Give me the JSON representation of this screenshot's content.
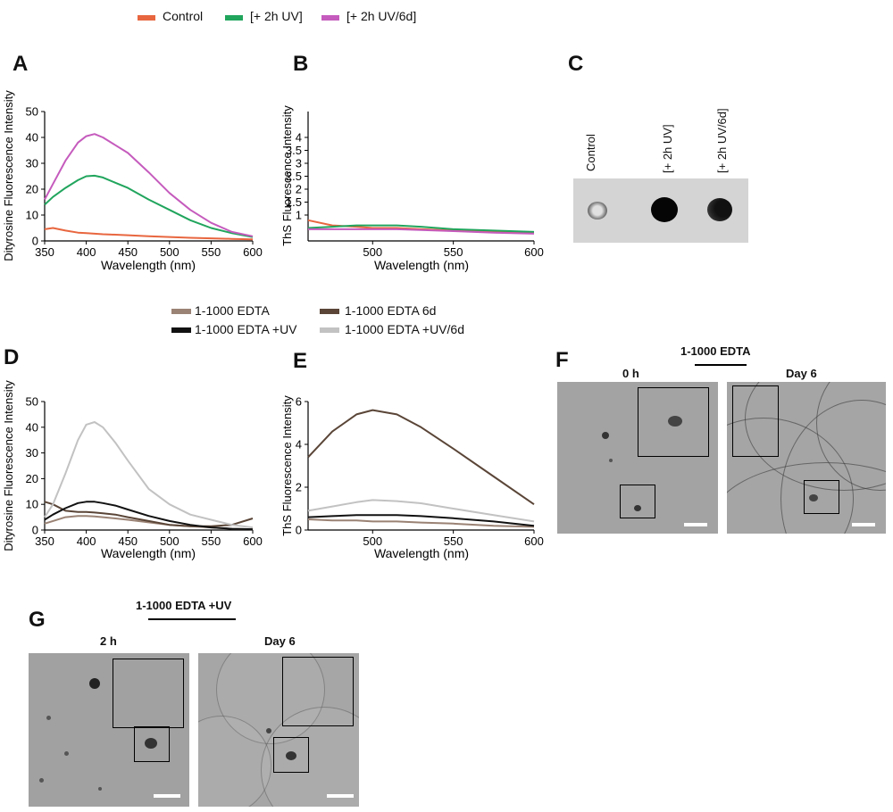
{
  "colors": {
    "control": "#e8663f",
    "uv2h": "#21a55d",
    "uv6d": "#c55bbd",
    "edta": "#9a8274",
    "edta6d": "#5a4537",
    "edta_uv": "#111111",
    "edta_uv6d": "#c2c2c2"
  },
  "legend_top": [
    {
      "label": "Control",
      "color": "#e8663f"
    },
    {
      "label": "[+ 2h UV]",
      "color": "#21a55d"
    },
    {
      "label": "[+ 2h UV/6d]",
      "color": "#c55bbd"
    }
  ],
  "legend_mid": [
    {
      "label": "1-1000 EDTA",
      "color": "#9a8274"
    },
    {
      "label": "1-1000 EDTA 6d",
      "color": "#5a4537"
    },
    {
      "label": "1-1000 EDTA +UV",
      "color": "#111111"
    },
    {
      "label": "1-1000 EDTA +UV/6d",
      "color": "#c2c2c2"
    }
  ],
  "panels": {
    "A": "A",
    "B": "B",
    "C": "C",
    "D": "D",
    "E": "E",
    "F": "F",
    "G": "G"
  },
  "blot": {
    "labels": [
      "Control",
      "[+ 2h UV]",
      "[+ 2h UV/6d]"
    ]
  },
  "em": {
    "F": {
      "group": "1-1000 EDTA",
      "left": "0 h",
      "right": "Day 6"
    },
    "G": {
      "group": "1-1000 EDTA +UV",
      "left": "2 h",
      "right": "Day 6"
    }
  },
  "chart_data": [
    {
      "id": "A",
      "type": "line",
      "xlabel": "Wavelength (nm)",
      "ylabel": "Dityrosine Fluorescence Intensity",
      "xlim": [
        350,
        600
      ],
      "ylim": [
        0,
        50
      ],
      "xticks": [
        350,
        400,
        450,
        500,
        550,
        600
      ],
      "yticks": [
        0,
        10,
        20,
        30,
        40,
        50
      ],
      "x": [
        350,
        360,
        375,
        390,
        400,
        410,
        420,
        435,
        450,
        475,
        500,
        525,
        550,
        575,
        600
      ],
      "series": [
        {
          "name": "Control",
          "color": "#e8663f",
          "values": [
            4.5,
            5,
            4,
            3.2,
            3,
            2.8,
            2.6,
            2.4,
            2.2,
            1.8,
            1.5,
            1.2,
            1,
            0.8,
            0.6
          ]
        },
        {
          "name": "[+ 2h UV]",
          "color": "#21a55d",
          "values": [
            14,
            17,
            20.5,
            23.5,
            25,
            25.2,
            24.5,
            22.5,
            20.5,
            16,
            12,
            8,
            5,
            3,
            1.5
          ]
        },
        {
          "name": "[+ 2h UV/6d]",
          "color": "#c55bbd",
          "values": [
            16,
            22,
            31,
            38,
            40.5,
            41.3,
            40,
            37,
            34,
            26.5,
            18.5,
            12,
            7,
            3.5,
            1.8
          ]
        }
      ]
    },
    {
      "id": "B",
      "type": "line",
      "xlabel": "Wavelength (nm)",
      "ylabel": "ThS Fluorescence Intensity",
      "xlim": [
        460,
        600
      ],
      "ylim": [
        0,
        5
      ],
      "xticks": [
        500,
        550,
        600
      ],
      "yticks": [
        1,
        1.5,
        2,
        2.5,
        3,
        3.5,
        4
      ],
      "x": [
        460,
        475,
        490,
        500,
        515,
        530,
        550,
        575,
        600
      ],
      "series": [
        {
          "name": "Control",
          "color": "#e8663f",
          "values": [
            0.8,
            0.6,
            0.55,
            0.5,
            0.5,
            0.45,
            0.4,
            0.35,
            0.3
          ]
        },
        {
          "name": "[+ 2h UV]",
          "color": "#21a55d",
          "values": [
            0.5,
            0.55,
            0.6,
            0.6,
            0.6,
            0.55,
            0.45,
            0.4,
            0.35
          ]
        },
        {
          "name": "[+ 2h UV/6d]",
          "color": "#c55bbd",
          "values": [
            0.45,
            0.45,
            0.45,
            0.45,
            0.45,
            0.42,
            0.38,
            0.32,
            0.28
          ]
        }
      ]
    },
    {
      "id": "D",
      "type": "line",
      "xlabel": "Wavelength (nm)",
      "ylabel": "Dityrosine Fluorescence Intensity",
      "xlim": [
        350,
        600
      ],
      "ylim": [
        0,
        50
      ],
      "xticks": [
        350,
        400,
        450,
        500,
        550,
        600
      ],
      "yticks": [
        0,
        10,
        20,
        30,
        40,
        50
      ],
      "x": [
        350,
        360,
        375,
        390,
        400,
        410,
        420,
        435,
        450,
        475,
        500,
        525,
        550,
        575,
        600
      ],
      "series": [
        {
          "name": "1-1000 EDTA",
          "color": "#9a8274",
          "values": [
            2.5,
            3.5,
            5,
            5.5,
            5.5,
            5.3,
            5,
            4.5,
            4,
            3,
            2,
            1.5,
            1,
            0.5,
            0.3
          ]
        },
        {
          "name": "1-1000 EDTA 6d",
          "color": "#5a4537",
          "values": [
            11,
            10,
            7.5,
            7,
            7,
            6.8,
            6.5,
            6,
            5,
            3.5,
            2,
            1.5,
            1.5,
            2,
            4.5
          ]
        },
        {
          "name": "1-1000 EDTA +UV",
          "color": "#111111",
          "values": [
            4,
            6,
            8.5,
            10.5,
            11,
            11,
            10.5,
            9.5,
            8,
            5.5,
            3.5,
            2,
            1,
            0.5,
            0.3
          ]
        },
        {
          "name": "1-1000 EDTA +UV/6d",
          "color": "#c2c2c2",
          "values": [
            5,
            10,
            22,
            35,
            41,
            42,
            40,
            34,
            27,
            16,
            10,
            6,
            4,
            2,
            1
          ]
        }
      ]
    },
    {
      "id": "E",
      "type": "line",
      "xlabel": "Wavelength (nm)",
      "ylabel": "ThS Fluorescence Intensity",
      "xlim": [
        460,
        600
      ],
      "ylim": [
        0,
        6
      ],
      "xticks": [
        500,
        550,
        600
      ],
      "yticks": [
        0,
        2,
        4,
        6
      ],
      "x": [
        460,
        475,
        490,
        500,
        515,
        530,
        550,
        575,
        600
      ],
      "series": [
        {
          "name": "1-1000 EDTA",
          "color": "#9a8274",
          "values": [
            0.5,
            0.45,
            0.45,
            0.4,
            0.4,
            0.35,
            0.3,
            0.2,
            0.15
          ]
        },
        {
          "name": "1-1000 EDTA 6d",
          "color": "#5a4537",
          "values": [
            3.4,
            4.6,
            5.4,
            5.6,
            5.4,
            4.8,
            3.8,
            2.5,
            1.2
          ]
        },
        {
          "name": "1-1000 EDTA +UV",
          "color": "#111111",
          "values": [
            0.6,
            0.65,
            0.7,
            0.7,
            0.7,
            0.65,
            0.55,
            0.4,
            0.2
          ]
        },
        {
          "name": "1-1000 EDTA +UV/6d",
          "color": "#c2c2c2",
          "values": [
            0.9,
            1.1,
            1.3,
            1.4,
            1.35,
            1.25,
            1.0,
            0.7,
            0.4
          ]
        }
      ]
    }
  ]
}
